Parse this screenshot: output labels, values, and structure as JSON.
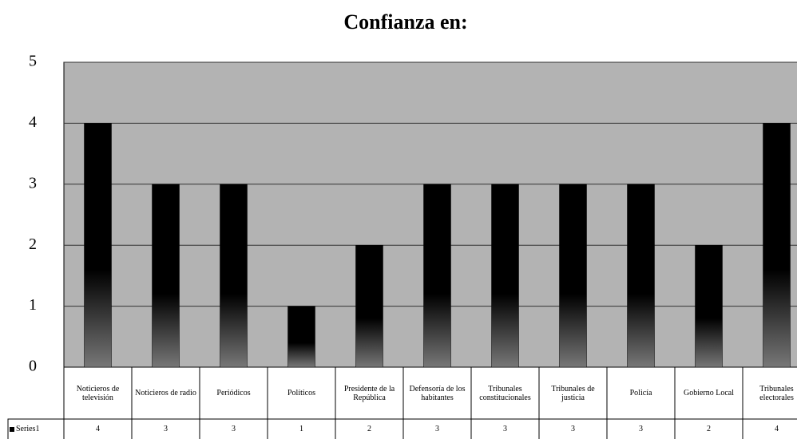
{
  "chart_data": {
    "type": "bar",
    "title": "Confianza en:",
    "categories": [
      "Noticieros de televisión",
      "Noticieros de radio",
      "Periódicos",
      "Políticos",
      "Presidente de la República",
      "Defensoría de los habitantes",
      "Tribunales constitucionales",
      "Tribunales de justicia",
      "Policía",
      "Gobierno Local",
      "Tribunales electorales"
    ],
    "series": [
      {
        "name": "Series1",
        "color": "#000000",
        "values": [
          4,
          3,
          3,
          1,
          2,
          3,
          3,
          3,
          3,
          2,
          4
        ]
      }
    ],
    "ylim": [
      0,
      5
    ],
    "yticks": [
      0,
      1,
      2,
      3,
      4,
      5
    ],
    "grid": true,
    "plot_background": "#b3b3b3"
  }
}
